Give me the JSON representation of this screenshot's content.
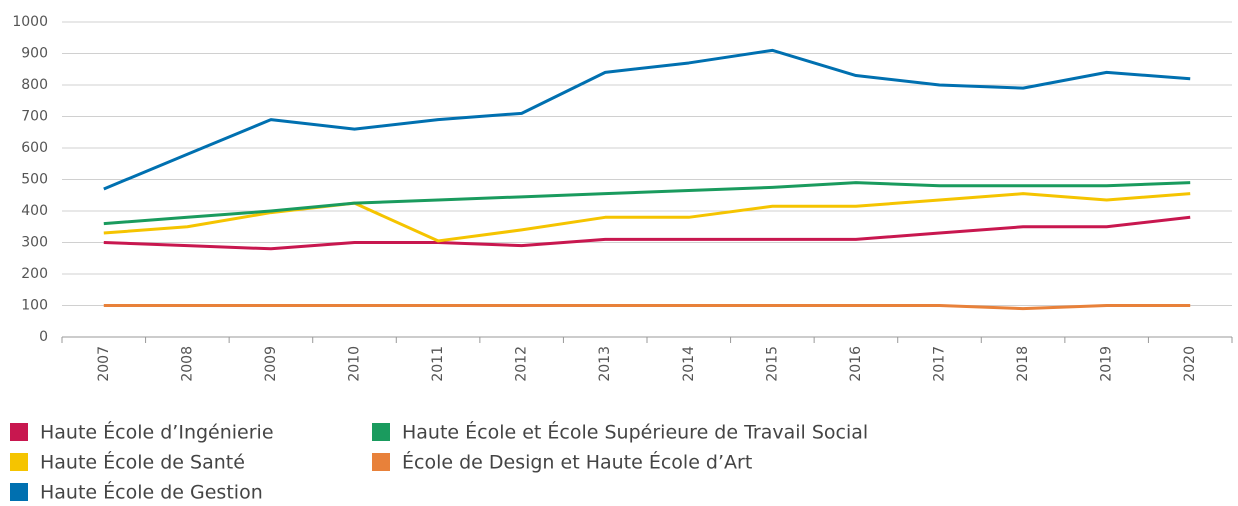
{
  "chart_data": {
    "type": "line",
    "categories": [
      "2007",
      "2008",
      "2009",
      "2010",
      "2011",
      "2012",
      "2013",
      "2014",
      "2015",
      "2016",
      "2017",
      "2018",
      "2019",
      "2020"
    ],
    "series": [
      {
        "name": "Haute École d’Ingénierie",
        "color": "#c8174f",
        "values": [
          300,
          290,
          280,
          300,
          300,
          290,
          310,
          310,
          310,
          310,
          330,
          350,
          350,
          380
        ]
      },
      {
        "name": "Haute École de Santé",
        "color": "#f5c400",
        "values": [
          330,
          350,
          395,
          425,
          305,
          340,
          380,
          380,
          415,
          415,
          435,
          455,
          435,
          455
        ]
      },
      {
        "name": "Haute École de Gestion",
        "color": "#0070b0",
        "values": [
          470,
          580,
          690,
          660,
          690,
          710,
          840,
          870,
          910,
          830,
          800,
          790,
          840,
          820
        ]
      },
      {
        "name": "Haute École et École Supérieure de Travail Social",
        "color": "#1a9b5e",
        "values": [
          360,
          380,
          400,
          425,
          435,
          445,
          455,
          465,
          475,
          490,
          480,
          480,
          480,
          490
        ]
      },
      {
        "name": "École de Design et Haute École d’Art",
        "color": "#e8813a",
        "values": [
          100,
          100,
          100,
          100,
          100,
          100,
          100,
          100,
          100,
          100,
          100,
          90,
          100,
          100
        ]
      }
    ],
    "ylim": [
      0,
      1000
    ],
    "yticks": [
      0,
      100,
      200,
      300,
      400,
      500,
      600,
      700,
      800,
      900,
      1000
    ],
    "grid": true
  }
}
